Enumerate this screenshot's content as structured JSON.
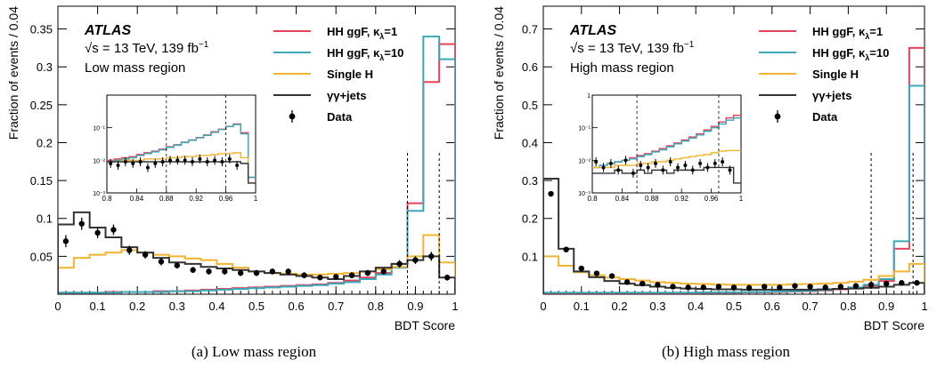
{
  "chart_data": [
    {
      "type": "histogram",
      "panel": "a",
      "caption": "(a) Low mass region",
      "experiment": "ATLAS",
      "energy_label": "√s = 13 TeV, 139 fb",
      "energy_sup": "−1",
      "region_label": "Low mass region",
      "xlabel": "BDT Score",
      "ylabel": "Fraction of events / 0.04",
      "xlim": [
        0,
        1
      ],
      "ylim": [
        0,
        0.38
      ],
      "xticks": [
        0,
        0.1,
        0.2,
        0.3,
        0.4,
        0.5,
        0.6,
        0.7,
        0.8,
        0.9,
        1
      ],
      "yticks": [
        0.05,
        0.1,
        0.15,
        0.2,
        0.25,
        0.3,
        0.35
      ],
      "bin_edges": [
        0,
        0.04,
        0.08,
        0.12,
        0.16,
        0.2,
        0.24,
        0.28,
        0.32,
        0.36,
        0.4,
        0.44,
        0.48,
        0.52,
        0.56,
        0.6,
        0.64,
        0.68,
        0.72,
        0.76,
        0.8,
        0.84,
        0.88,
        0.92,
        0.96,
        1.0
      ],
      "dashed_lines": [
        0.88,
        0.96
      ],
      "legend": {
        "position": "top-right",
        "entries": [
          {
            "label": "HH ggF, κ",
            "sub": "λ",
            "suffix": "=1",
            "color": "#e8425a",
            "style": "line"
          },
          {
            "label": "HH ggF, κ",
            "sub": "λ",
            "suffix": "=10",
            "color": "#3aa8b8",
            "style": "line"
          },
          {
            "label": "Single H",
            "color": "#f2b531",
            "style": "line"
          },
          {
            "label": "γγ+jets",
            "color": "#333333",
            "style": "line"
          },
          {
            "label": "Data",
            "color": "#000000",
            "style": "marker"
          }
        ]
      },
      "series": [
        {
          "name": "HH ggF, κλ=1",
          "color": "#e8425a",
          "values": [
            0.002,
            0.002,
            0.002,
            0.003,
            0.003,
            0.003,
            0.004,
            0.004,
            0.005,
            0.006,
            0.007,
            0.008,
            0.009,
            0.01,
            0.011,
            0.012,
            0.013,
            0.015,
            0.018,
            0.022,
            0.028,
            0.04,
            0.12,
            0.28,
            0.33
          ]
        },
        {
          "name": "HH ggF, κλ=10",
          "color": "#3aa8b8",
          "values": [
            0.002,
            0.002,
            0.002,
            0.002,
            0.003,
            0.003,
            0.003,
            0.004,
            0.004,
            0.005,
            0.006,
            0.007,
            0.008,
            0.009,
            0.01,
            0.011,
            0.012,
            0.014,
            0.016,
            0.02,
            0.026,
            0.035,
            0.11,
            0.34,
            0.31
          ]
        },
        {
          "name": "Single H",
          "color": "#f2b531",
          "values": [
            0.035,
            0.048,
            0.052,
            0.055,
            0.058,
            0.055,
            0.052,
            0.05,
            0.047,
            0.045,
            0.04,
            0.035,
            0.03,
            0.028,
            0.027,
            0.026,
            0.026,
            0.027,
            0.028,
            0.03,
            0.033,
            0.036,
            0.05,
            0.078,
            0.042
          ]
        },
        {
          "name": "γγ+jets",
          "color": "#333333",
          "values": [
            0.092,
            0.108,
            0.088,
            0.075,
            0.062,
            0.055,
            0.048,
            0.042,
            0.04,
            0.036,
            0.034,
            0.032,
            0.03,
            0.028,
            0.026,
            0.024,
            0.022,
            0.02,
            0.024,
            0.03,
            0.035,
            0.04,
            0.045,
            0.05,
            0.022
          ]
        }
      ],
      "data_points": {
        "x": [
          0.02,
          0.06,
          0.1,
          0.14,
          0.18,
          0.22,
          0.26,
          0.3,
          0.34,
          0.38,
          0.42,
          0.46,
          0.5,
          0.54,
          0.58,
          0.62,
          0.66,
          0.7,
          0.74,
          0.78,
          0.82,
          0.86,
          0.9,
          0.94,
          0.98
        ],
        "y": [
          0.07,
          0.093,
          0.081,
          0.085,
          0.058,
          0.052,
          0.043,
          0.038,
          0.032,
          0.03,
          0.03,
          0.028,
          0.028,
          0.03,
          0.03,
          0.025,
          0.022,
          0.023,
          0.025,
          0.028,
          0.03,
          0.04,
          0.045,
          0.05,
          0.022
        ],
        "err": [
          0.008,
          0.008,
          0.007,
          0.007,
          0.006,
          0.005,
          0.005,
          0.004,
          0.004,
          0.004,
          0.004,
          0.004,
          0.004,
          0.004,
          0.004,
          0.004,
          0.003,
          0.003,
          0.004,
          0.004,
          0.004,
          0.005,
          0.005,
          0.006,
          0.004
        ]
      },
      "inset": {
        "xlim": [
          0.8,
          1.0
        ],
        "ylog": true,
        "ylim": [
          0.001,
          1
        ],
        "xticks": [
          0.8,
          0.84,
          0.88,
          0.92,
          0.96,
          1
        ],
        "xtick_labels": [
          "0.8",
          "0.84",
          "0.88",
          "0.92",
          "0.96",
          "1"
        ],
        "ytick_labels": [
          "10⁻³",
          "10⁻²",
          "10⁻¹"
        ],
        "ytick_values": [
          0.001,
          0.01,
          0.1
        ],
        "dashed_lines": [
          0.88,
          0.96
        ],
        "bin_edges": [
          0.8,
          0.81,
          0.82,
          0.83,
          0.84,
          0.85,
          0.86,
          0.87,
          0.88,
          0.89,
          0.9,
          0.91,
          0.92,
          0.93,
          0.94,
          0.95,
          0.96,
          0.97,
          0.98,
          0.99,
          1.0
        ],
        "series": [
          {
            "color": "#e8425a",
            "values": [
              0.01,
              0.011,
              0.012,
              0.013,
              0.015,
              0.017,
              0.019,
              0.022,
              0.026,
              0.03,
              0.036,
              0.042,
              0.05,
              0.06,
              0.075,
              0.09,
              0.11,
              0.13,
              0.07,
              0.003
            ]
          },
          {
            "color": "#3aa8b8",
            "values": [
              0.009,
              0.01,
              0.011,
              0.012,
              0.014,
              0.016,
              0.018,
              0.021,
              0.025,
              0.029,
              0.035,
              0.041,
              0.049,
              0.058,
              0.072,
              0.088,
              0.108,
              0.125,
              0.065,
              0.003
            ]
          },
          {
            "color": "#f2b531",
            "values": [
              0.009,
              0.009,
              0.01,
              0.01,
              0.01,
              0.011,
              0.011,
              0.011,
              0.012,
              0.012,
              0.013,
              0.013,
              0.014,
              0.014,
              0.015,
              0.016,
              0.016,
              0.017,
              0.012,
              0.002
            ]
          },
          {
            "color": "#333333",
            "values": [
              0.009,
              0.009,
              0.009,
              0.009,
              0.009,
              0.009,
              0.009,
              0.009,
              0.009,
              0.009,
              0.009,
              0.009,
              0.009,
              0.009,
              0.009,
              0.009,
              0.009,
              0.009,
              0.008,
              0.002
            ]
          }
        ],
        "data_points": {
          "x": [
            0.805,
            0.815,
            0.825,
            0.835,
            0.845,
            0.855,
            0.865,
            0.875,
            0.885,
            0.895,
            0.905,
            0.915,
            0.925,
            0.935,
            0.945,
            0.955,
            0.965,
            0.975
          ],
          "y": [
            0.008,
            0.007,
            0.009,
            0.008,
            0.009,
            0.006,
            0.008,
            0.009,
            0.01,
            0.01,
            0.01,
            0.009,
            0.011,
            0.009,
            0.01,
            0.009,
            0.011,
            0.007
          ]
        }
      }
    },
    {
      "type": "histogram",
      "panel": "b",
      "caption": "(b) High mass region",
      "experiment": "ATLAS",
      "energy_label": "√s = 13 TeV, 139 fb",
      "energy_sup": "−1",
      "region_label": "High mass region",
      "xlabel": "BDT Score",
      "ylabel": "Fraction of events / 0.04",
      "xlim": [
        0,
        1
      ],
      "ylim": [
        0,
        0.76
      ],
      "xticks": [
        0,
        0.1,
        0.2,
        0.3,
        0.4,
        0.5,
        0.6,
        0.7,
        0.8,
        0.9,
        1
      ],
      "yticks": [
        0.1,
        0.2,
        0.3,
        0.4,
        0.5,
        0.6,
        0.7
      ],
      "bin_edges": [
        0,
        0.04,
        0.08,
        0.12,
        0.16,
        0.2,
        0.24,
        0.28,
        0.32,
        0.36,
        0.4,
        0.44,
        0.48,
        0.52,
        0.56,
        0.6,
        0.64,
        0.68,
        0.72,
        0.76,
        0.8,
        0.84,
        0.88,
        0.92,
        0.96,
        1.0
      ],
      "dashed_lines": [
        0.86,
        0.97
      ],
      "legend": {
        "position": "top-right",
        "entries": [
          {
            "label": "HH ggF, κ",
            "sub": "λ",
            "suffix": "=1",
            "color": "#e8425a",
            "style": "line"
          },
          {
            "label": "HH ggF, κ",
            "sub": "λ",
            "suffix": "=10",
            "color": "#3aa8b8",
            "style": "line"
          },
          {
            "label": "Single H",
            "color": "#f2b531",
            "style": "line"
          },
          {
            "label": "γγ+jets",
            "color": "#333333",
            "style": "line"
          },
          {
            "label": "Data",
            "color": "#000000",
            "style": "marker"
          }
        ]
      },
      "series": [
        {
          "name": "HH ggF, κλ=1",
          "color": "#e8425a",
          "values": [
            0.003,
            0.003,
            0.003,
            0.003,
            0.003,
            0.003,
            0.003,
            0.003,
            0.003,
            0.003,
            0.004,
            0.004,
            0.004,
            0.005,
            0.005,
            0.006,
            0.007,
            0.008,
            0.01,
            0.013,
            0.016,
            0.022,
            0.035,
            0.12,
            0.65
          ]
        },
        {
          "name": "HH ggF, κλ=10",
          "color": "#3aa8b8",
          "values": [
            0.004,
            0.004,
            0.004,
            0.004,
            0.004,
            0.004,
            0.004,
            0.004,
            0.004,
            0.004,
            0.005,
            0.005,
            0.005,
            0.006,
            0.006,
            0.007,
            0.008,
            0.009,
            0.011,
            0.014,
            0.018,
            0.025,
            0.04,
            0.14,
            0.55
          ]
        },
        {
          "name": "Single H",
          "color": "#f2b531",
          "values": [
            0.1,
            0.075,
            0.058,
            0.05,
            0.044,
            0.04,
            0.036,
            0.032,
            0.03,
            0.028,
            0.027,
            0.026,
            0.025,
            0.025,
            0.025,
            0.025,
            0.026,
            0.027,
            0.028,
            0.03,
            0.033,
            0.038,
            0.048,
            0.06,
            0.08
          ]
        },
        {
          "name": "γγ+jets",
          "color": "#333333",
          "values": [
            0.305,
            0.12,
            0.06,
            0.045,
            0.035,
            0.028,
            0.024,
            0.02,
            0.017,
            0.015,
            0.014,
            0.013,
            0.013,
            0.012,
            0.012,
            0.012,
            0.012,
            0.012,
            0.013,
            0.014,
            0.015,
            0.017,
            0.02,
            0.025,
            0.03
          ]
        }
      ],
      "data_points": {
        "x": [
          0.02,
          0.06,
          0.1,
          0.14,
          0.18,
          0.22,
          0.26,
          0.3,
          0.34,
          0.38,
          0.42,
          0.46,
          0.5,
          0.54,
          0.58,
          0.62,
          0.66,
          0.7,
          0.74,
          0.78,
          0.82,
          0.86,
          0.9,
          0.94,
          0.98
        ],
        "y": [
          0.265,
          0.118,
          0.068,
          0.055,
          0.048,
          0.032,
          0.028,
          0.025,
          0.02,
          0.018,
          0.018,
          0.02,
          0.018,
          0.017,
          0.02,
          0.018,
          0.022,
          0.02,
          0.018,
          0.02,
          0.022,
          0.025,
          0.028,
          0.03,
          0.03
        ]
      },
      "inset": {
        "xlim": [
          0.8,
          1.0
        ],
        "ylog": true,
        "ylim": [
          0.001,
          1
        ],
        "xticks": [
          0.8,
          0.84,
          0.88,
          0.92,
          0.96,
          1
        ],
        "xtick_labels": [
          "0.8",
          "0.84",
          "0.88",
          "0.92",
          "0.96",
          "1"
        ],
        "ytick_labels": [
          "10⁻³",
          "10⁻²",
          "10⁻¹",
          "1"
        ],
        "ytick_values": [
          0.001,
          0.01,
          0.1,
          1
        ],
        "dashed_lines": [
          0.86,
          0.97
        ],
        "bin_edges": [
          0.8,
          0.81,
          0.82,
          0.83,
          0.84,
          0.85,
          0.86,
          0.87,
          0.88,
          0.89,
          0.9,
          0.91,
          0.92,
          0.93,
          0.94,
          0.95,
          0.96,
          0.97,
          0.98,
          0.99,
          1.0
        ],
        "series": [
          {
            "color": "#e8425a",
            "values": [
              0.006,
              0.007,
              0.008,
              0.009,
              0.01,
              0.012,
              0.014,
              0.016,
              0.019,
              0.023,
              0.028,
              0.034,
              0.042,
              0.052,
              0.065,
              0.085,
              0.11,
              0.15,
              0.2,
              0.24
            ]
          },
          {
            "color": "#3aa8b8",
            "values": [
              0.006,
              0.007,
              0.008,
              0.009,
              0.01,
              0.011,
              0.013,
              0.015,
              0.018,
              0.021,
              0.026,
              0.032,
              0.039,
              0.048,
              0.06,
              0.078,
              0.1,
              0.13,
              0.17,
              0.2
            ]
          },
          {
            "color": "#f2b531",
            "values": [
              0.006,
              0.006,
              0.006,
              0.007,
              0.007,
              0.007,
              0.008,
              0.008,
              0.009,
              0.009,
              0.01,
              0.011,
              0.012,
              0.013,
              0.014,
              0.015,
              0.017,
              0.019,
              0.02,
              0.02
            ]
          },
          {
            "color": "#333333",
            "values": [
              0.004,
              0.004,
              0.004,
              0.005,
              0.004,
              0.004,
              0.005,
              0.004,
              0.005,
              0.005,
              0.004,
              0.005,
              0.005,
              0.005,
              0.005,
              0.006,
              0.006,
              0.006,
              0.006,
              0.002
            ]
          }
        ],
        "data_points": {
          "x": [
            0.805,
            0.815,
            0.825,
            0.835,
            0.845,
            0.855,
            0.865,
            0.875,
            0.885,
            0.895,
            0.905,
            0.915,
            0.925,
            0.935,
            0.945,
            0.955,
            0.965,
            0.975,
            0.985
          ],
          "y": [
            0.009,
            0.006,
            0.008,
            0.005,
            0.01,
            0.004,
            0.007,
            0.006,
            0.008,
            0.005,
            0.009,
            0.006,
            0.007,
            0.005,
            0.008,
            0.006,
            0.008,
            0.009,
            0.005
          ]
        }
      }
    }
  ]
}
